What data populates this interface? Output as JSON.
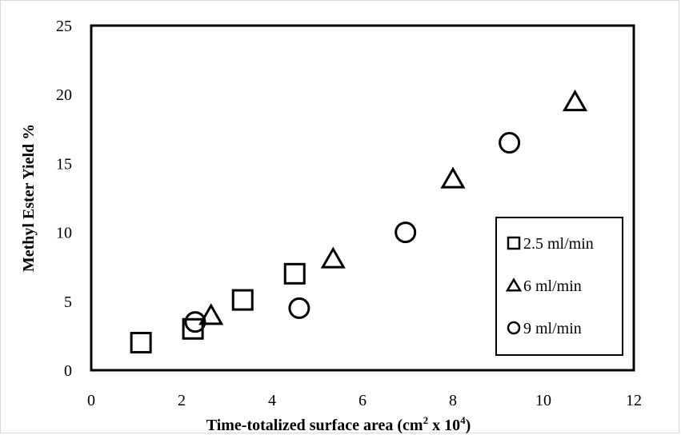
{
  "chart_data": {
    "type": "scatter",
    "title": "",
    "xlabel": {
      "main": "Time-totalized surface area (cm",
      "sup1": "2",
      "mid": " x 10",
      "sup2": "4",
      "end": ")"
    },
    "ylabel": "Methyl Ester Yield %",
    "xlim": [
      0,
      12
    ],
    "ylim": [
      0,
      25
    ],
    "xticks": [
      "0",
      "2",
      "4",
      "6",
      "8",
      "10",
      "12"
    ],
    "yticks": [
      "0",
      "5",
      "10",
      "15",
      "20",
      "25"
    ],
    "grid": false,
    "legend_position": "right",
    "series": [
      {
        "name": "2.5 ml/min",
        "marker": "square",
        "points": [
          [
            1.1,
            2.0
          ],
          [
            2.25,
            3.0
          ],
          [
            3.35,
            5.1
          ],
          [
            4.5,
            7.0
          ]
        ]
      },
      {
        "name": "6 ml/min",
        "marker": "triangle",
        "points": [
          [
            2.65,
            4.0
          ],
          [
            5.35,
            8.1
          ],
          [
            8.0,
            13.9
          ],
          [
            10.7,
            19.5
          ]
        ]
      },
      {
        "name": "9 ml/min",
        "marker": "circle",
        "points": [
          [
            2.3,
            3.5
          ],
          [
            4.6,
            4.5
          ],
          [
            6.95,
            10.0
          ],
          [
            9.25,
            16.5
          ]
        ]
      }
    ]
  }
}
